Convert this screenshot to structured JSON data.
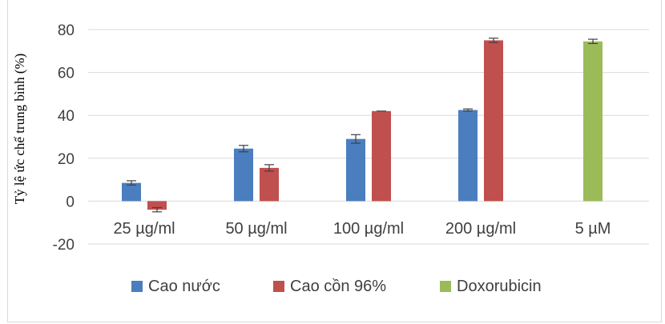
{
  "chart_data": {
    "type": "bar",
    "title": "",
    "xlabel": "",
    "ylabel": "Tỷ lệ ức chế trung bình (%)",
    "ylim": [
      -20,
      80
    ],
    "yticks": [
      -20,
      0,
      20,
      40,
      60,
      80
    ],
    "grid": true,
    "legend_position": "bottom",
    "categories": [
      "25 µg/ml",
      "50 µg/ml",
      "100 µg/ml",
      "200 µg/ml",
      "5 µM"
    ],
    "series": [
      {
        "name": "Cao nước",
        "color": "#4a7ebf",
        "values": [
          8.5,
          24.5,
          29,
          42.5,
          null
        ],
        "errors": [
          1,
          1.5,
          2,
          0.5,
          null
        ]
      },
      {
        "name": "Cao cồn 96%",
        "color": "#c0504d",
        "values": [
          -4,
          15.5,
          42,
          75,
          null
        ],
        "errors": [
          1,
          1.5,
          0,
          1,
          null
        ]
      },
      {
        "name": "Doxorubicin",
        "color": "#9bbb59",
        "values": [
          null,
          null,
          null,
          null,
          74.5
        ],
        "errors": [
          null,
          null,
          null,
          null,
          1
        ]
      }
    ]
  }
}
